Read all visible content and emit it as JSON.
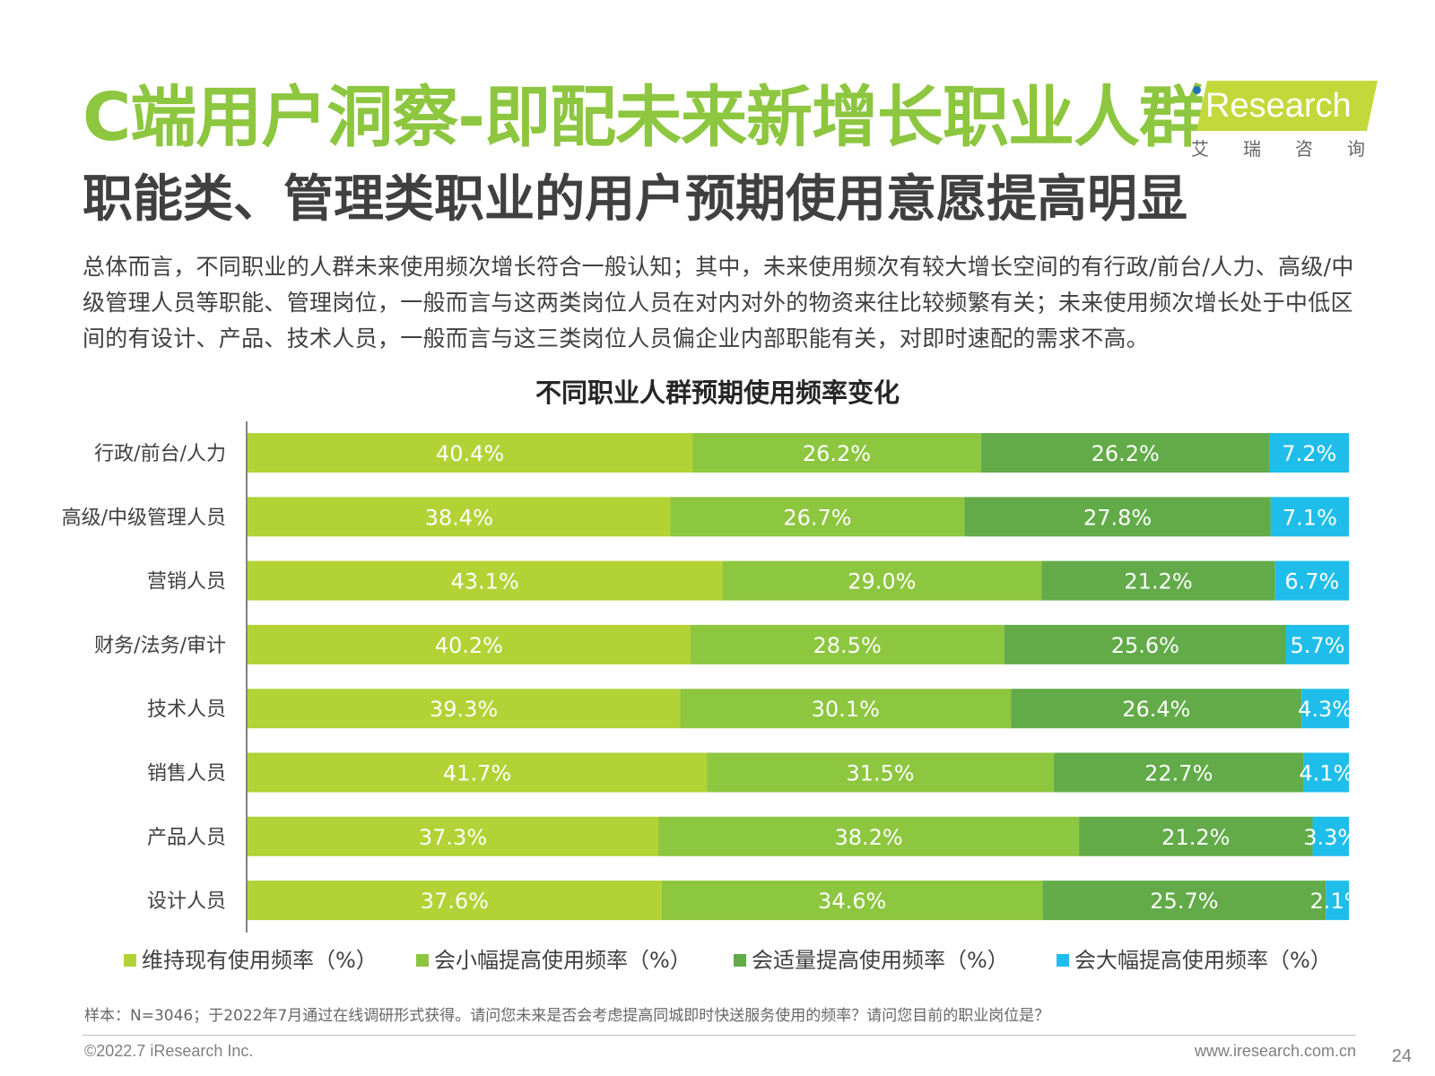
{
  "header": {
    "title": "C端用户洞察-即配未来新增长职业人群",
    "subtitle": "职能类、管理类职业的用户预期使用意愿提高明显",
    "description": "总体而言，不同职业的人群未来使用频次增长符合一般认知；其中，未来使用频次有较大增长空间的有行政/前台/人力、高级/中级管理人员等职能、管理岗位，一般而言与这两类岗位人员在对内对外的物资来往比较频繁有关；未来使用频次增长处于中低区间的有设计、产品、技术人员，一般而言与这三类岗位人员偏企业内部职能有关，对即时速配的需求不高。"
  },
  "logo": {
    "name": "iResearch",
    "name_rest": "Research",
    "subtext": "艾瑞咨询"
  },
  "chart_data": {
    "type": "bar",
    "orientation": "horizontal",
    "stacked": true,
    "title": "不同职业人群预期使用频率变化",
    "categories": [
      "行政/前台/人力",
      "高级/中级管理人员",
      "营销人员",
      "财务/法务/审计",
      "技术人员",
      "销售人员",
      "产品人员",
      "设计人员"
    ],
    "series": [
      {
        "name": "维持现有使用频率（%）",
        "color": "#b2d235",
        "values": [
          40.4,
          38.4,
          43.1,
          40.2,
          39.3,
          41.7,
          37.3,
          37.6
        ]
      },
      {
        "name": "会小幅提高使用频率（%）",
        "color": "#8dc63f",
        "values": [
          26.2,
          26.7,
          29.0,
          28.5,
          30.1,
          31.5,
          38.2,
          34.6
        ]
      },
      {
        "name": "会适量提高使用频率（%）",
        "color": "#62ab48",
        "values": [
          26.2,
          27.8,
          21.2,
          25.6,
          26.4,
          22.7,
          21.2,
          25.7
        ]
      },
      {
        "name": "会大幅提高使用频率（%）",
        "color": "#1fbeea",
        "values": [
          7.2,
          7.1,
          6.7,
          5.7,
          4.3,
          4.1,
          3.3,
          2.1
        ]
      }
    ],
    "value_suffix": "%",
    "xlim": [
      0,
      100
    ],
    "legend_position": "bottom",
    "grid": false
  },
  "footer": {
    "note": "样本：N=3046；于2022年7月通过在线调研形式获得。请问您未来是否会考虑提高同城即时快送服务使用的频率？请问您目前的职业岗位是？",
    "copyright": "©2022.7 iResearch Inc.",
    "website": "www.iresearch.com.cn",
    "page_number": "24"
  }
}
